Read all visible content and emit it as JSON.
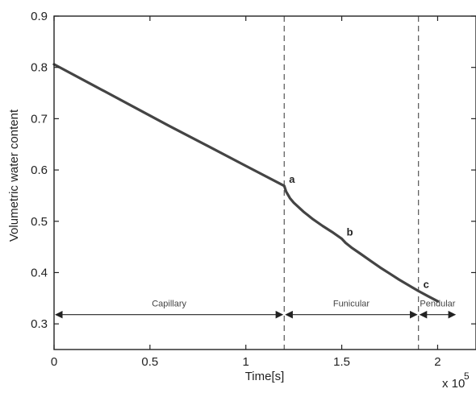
{
  "chart_data": {
    "type": "line",
    "xlabel": "Time[s]",
    "ylabel": "Volumetric water content",
    "x_multiplier_label": "x 10",
    "x_multiplier_exponent": "5",
    "xlim": [
      0,
      2.2
    ],
    "ylim": [
      0.25,
      0.9
    ],
    "x_ticks": [
      0,
      0.5,
      1,
      1.5,
      2
    ],
    "x_tick_labels": [
      "0",
      "0.5",
      "1",
      "1.5",
      "2"
    ],
    "y_ticks": [
      0.3,
      0.4,
      0.5,
      0.6,
      0.7,
      0.8,
      0.9
    ],
    "y_tick_labels": [
      "0.3",
      "0.4",
      "0.5",
      "0.6",
      "0.7",
      "0.8",
      "0.9"
    ],
    "grid": false,
    "series": [
      {
        "x": [
          0,
          0.2,
          0.4,
          0.6,
          0.8,
          1.0,
          1.2,
          1.21,
          1.23,
          1.25,
          1.3,
          1.35,
          1.4,
          1.45,
          1.5,
          1.52,
          1.55,
          1.6,
          1.65,
          1.7,
          1.75,
          1.8,
          1.85,
          1.9,
          1.95,
          2.0
        ],
        "y": [
          0.806,
          0.766,
          0.726,
          0.686,
          0.647,
          0.608,
          0.569,
          0.558,
          0.545,
          0.536,
          0.519,
          0.504,
          0.491,
          0.479,
          0.466,
          0.458,
          0.449,
          0.436,
          0.423,
          0.41,
          0.398,
          0.386,
          0.375,
          0.364,
          0.354,
          0.344
        ]
      }
    ],
    "vertical_lines": [
      1.2,
      1.9
    ],
    "point_annotations": [
      {
        "label": "a",
        "x": 1.2,
        "y": 0.569
      },
      {
        "label": "b",
        "x": 1.5,
        "y": 0.466
      },
      {
        "label": "c",
        "x": 1.9,
        "y": 0.364
      }
    ],
    "regions": [
      {
        "label": "Capillary",
        "x_start": 0,
        "x_end": 1.2,
        "y": 0.318
      },
      {
        "label": "Funicular",
        "x_start": 1.2,
        "x_end": 1.9,
        "y": 0.318
      },
      {
        "label": "Pendular",
        "x_start": 1.9,
        "x_end": 2.1,
        "y": 0.318
      }
    ]
  }
}
